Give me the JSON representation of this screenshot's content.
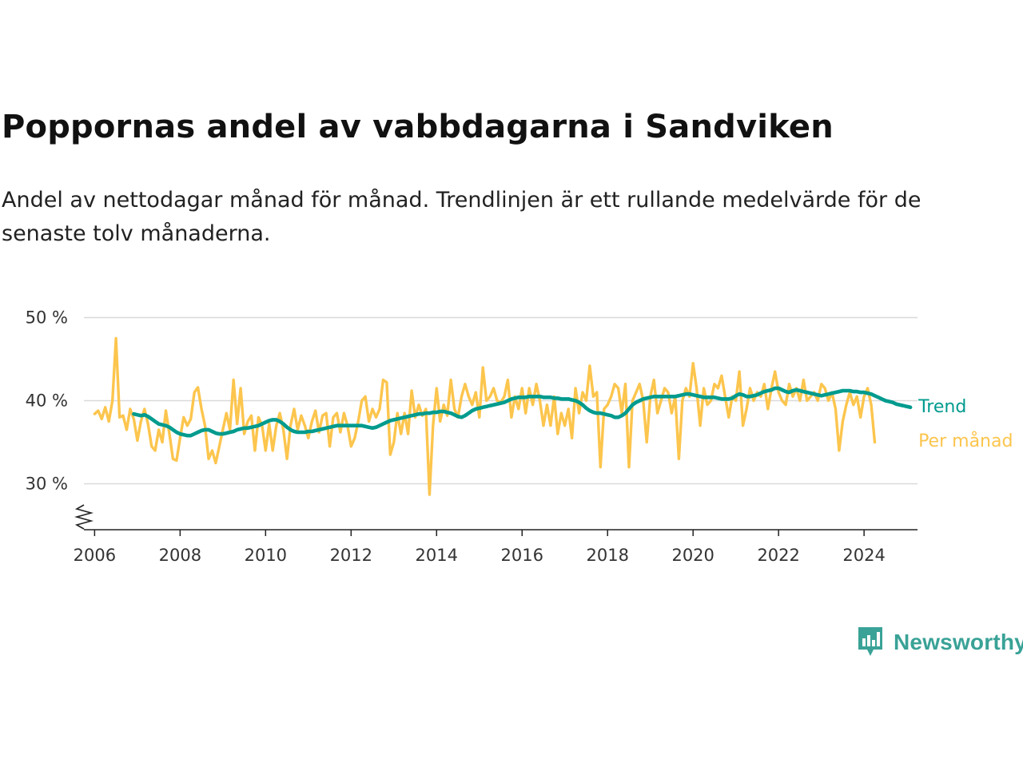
{
  "title": "Poppornas andel av vabbdagarna i Sandviken",
  "subtitle": "Andel av nettodagar månad för månad. Trendlinjen är ett rullande medelvärde för de senaste tolv månaderna.",
  "brand": {
    "name": "Newsworthy",
    "icon": "newsworthy-logo-icon",
    "color": "#3aa297"
  },
  "colors": {
    "trend": "#009b8e",
    "monthly": "#fcc54d",
    "grid": "#d9d9d9",
    "axis": "#222222"
  },
  "chart_data": {
    "type": "line",
    "title": "Poppornas andel av vabbdagarna i Sandviken",
    "xlabel": "",
    "ylabel": "",
    "xlim": [
      2005.75,
      2025.25
    ],
    "ylim": [
      25,
      50
    ],
    "axis_break": true,
    "grid": true,
    "y_ticks": [
      30,
      40,
      50
    ],
    "y_tick_labels": [
      "30 %",
      "40 %",
      "50 %"
    ],
    "x_ticks": [
      2006,
      2008,
      2010,
      2012,
      2014,
      2016,
      2018,
      2020,
      2022,
      2024
    ],
    "x_tick_labels": [
      "2006",
      "2008",
      "2010",
      "2012",
      "2014",
      "2016",
      "2018",
      "2020",
      "2022",
      "2024"
    ],
    "legend": "direct labels at line ends",
    "series": [
      {
        "name": "Per månad",
        "start": "2006-01",
        "frequency": "monthly",
        "values": [
          38.4,
          38.8,
          37.8,
          39.2,
          37.5,
          40.0,
          47.5,
          38.0,
          38.2,
          36.5,
          39.0,
          37.8,
          35.2,
          37.5,
          39.0,
          37.2,
          34.5,
          34.0,
          36.5,
          35.0,
          38.8,
          36.0,
          33.0,
          32.8,
          35.5,
          38.0,
          37.0,
          37.8,
          41.0,
          41.6,
          39.0,
          37.0,
          33.0,
          34.0,
          32.5,
          34.5,
          36.5,
          38.5,
          36.5,
          42.5,
          37.2,
          41.5,
          36.0,
          37.5,
          38.2,
          34.0,
          38.0,
          37.0,
          34.0,
          37.2,
          34.0,
          37.0,
          38.5,
          36.5,
          33.0,
          37.0,
          39.0,
          36.5,
          38.2,
          37.0,
          35.5,
          37.5,
          38.8,
          36.2,
          38.2,
          38.5,
          34.5,
          38.0,
          38.5,
          36.2,
          38.5,
          37.0,
          34.5,
          35.5,
          37.5,
          40.0,
          40.5,
          37.5,
          39.0,
          38.0,
          39.0,
          42.5,
          42.2,
          33.5,
          35.0,
          38.5,
          36.0,
          38.5,
          36.0,
          41.2,
          38.0,
          39.5,
          38.2,
          39.0,
          28.7,
          37.0,
          41.5,
          37.5,
          39.5,
          38.2,
          42.5,
          39.0,
          38.0,
          40.5,
          42.0,
          40.5,
          39.5,
          41.0,
          38.0,
          44.0,
          40.0,
          40.5,
          41.5,
          40.0,
          39.8,
          40.5,
          42.5,
          38.0,
          40.5,
          39.0,
          41.5,
          38.5,
          41.5,
          39.5,
          42.0,
          40.0,
          37.0,
          39.5,
          37.0,
          40.5,
          36.0,
          38.5,
          37.0,
          39.0,
          35.5,
          41.5,
          38.5,
          41.0,
          40.0,
          44.2,
          40.5,
          41.0,
          32.0,
          39.0,
          39.5,
          40.5,
          42.0,
          41.5,
          38.5,
          42.0,
          32.0,
          40.0,
          41.0,
          42.0,
          40.0,
          35.0,
          40.5,
          42.5,
          38.5,
          40.0,
          41.5,
          41.0,
          38.5,
          40.5,
          33.0,
          40.0,
          41.5,
          40.5,
          44.5,
          41.5,
          37.0,
          41.5,
          39.5,
          40.0,
          42.0,
          41.5,
          43.0,
          40.5,
          38.0,
          40.5,
          40.0,
          43.5,
          37.0,
          39.0,
          41.5,
          40.0,
          41.0,
          40.5,
          42.0,
          39.0,
          41.5,
          43.5,
          41.0,
          40.0,
          39.5,
          42.0,
          40.5,
          41.5,
          40.0,
          42.5,
          40.0,
          40.5,
          41.0,
          40.0,
          42.0,
          41.5,
          40.0,
          41.0,
          39.0,
          34.0,
          37.5,
          39.5,
          41.0,
          39.5,
          40.5,
          38.0,
          40.5,
          41.5,
          39.5,
          35.0
        ]
      },
      {
        "name": "Trend",
        "start": "2006-12",
        "frequency": "monthly",
        "values": [
          38.4,
          38.3,
          38.2,
          38.3,
          38.1,
          37.8,
          37.5,
          37.2,
          37.1,
          37.0,
          36.8,
          36.5,
          36.2,
          36.0,
          35.9,
          35.8,
          35.8,
          36.0,
          36.2,
          36.4,
          36.5,
          36.5,
          36.3,
          36.1,
          36.0,
          36.0,
          36.1,
          36.2,
          36.3,
          36.5,
          36.6,
          36.7,
          36.7,
          36.8,
          36.9,
          37.0,
          37.2,
          37.4,
          37.6,
          37.7,
          37.7,
          37.5,
          37.2,
          36.8,
          36.5,
          36.3,
          36.2,
          36.2,
          36.2,
          36.3,
          36.3,
          36.4,
          36.5,
          36.6,
          36.7,
          36.8,
          36.9,
          37.0,
          37.0,
          37.0,
          37.0,
          37.0,
          37.0,
          37.0,
          37.0,
          36.9,
          36.8,
          36.7,
          36.8,
          37.0,
          37.2,
          37.4,
          37.6,
          37.7,
          37.8,
          37.9,
          38.0,
          38.1,
          38.2,
          38.3,
          38.4,
          38.4,
          38.5,
          38.5,
          38.6,
          38.6,
          38.7,
          38.7,
          38.6,
          38.5,
          38.3,
          38.1,
          38.0,
          38.2,
          38.5,
          38.8,
          39.0,
          39.1,
          39.2,
          39.3,
          39.4,
          39.5,
          39.6,
          39.7,
          39.8,
          40.0,
          40.2,
          40.3,
          40.4,
          40.4,
          40.4,
          40.5,
          40.5,
          40.5,
          40.5,
          40.4,
          40.4,
          40.4,
          40.3,
          40.3,
          40.2,
          40.2,
          40.2,
          40.1,
          40.0,
          39.8,
          39.5,
          39.1,
          38.8,
          38.6,
          38.5,
          38.5,
          38.4,
          38.3,
          38.2,
          38.0,
          38.0,
          38.2,
          38.5,
          39.0,
          39.5,
          39.8,
          40.0,
          40.2,
          40.3,
          40.4,
          40.5,
          40.5,
          40.5,
          40.5,
          40.5,
          40.5,
          40.5,
          40.6,
          40.7,
          40.8,
          40.8,
          40.7,
          40.6,
          40.5,
          40.4,
          40.4,
          40.4,
          40.4,
          40.3,
          40.2,
          40.2,
          40.2,
          40.3,
          40.6,
          40.8,
          40.7,
          40.5,
          40.5,
          40.6,
          40.7,
          40.9,
          41.1,
          41.2,
          41.3,
          41.5,
          41.5,
          41.3,
          41.1,
          41.0,
          41.2,
          41.3,
          41.2,
          41.1,
          41.0,
          40.9,
          40.8,
          40.7,
          40.6,
          40.7,
          40.8,
          40.9,
          41.0,
          41.1,
          41.2,
          41.2,
          41.2,
          41.1,
          41.1,
          41.0,
          41.0,
          40.9,
          40.8,
          40.6,
          40.4,
          40.2,
          40.0,
          39.9,
          39.8,
          39.6,
          39.5,
          39.4,
          39.3,
          39.2
        ]
      }
    ]
  }
}
